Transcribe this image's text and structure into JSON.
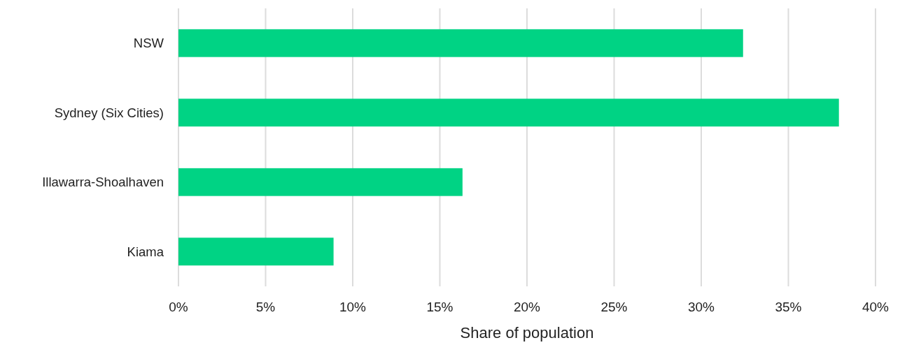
{
  "chart_data": {
    "type": "bar",
    "orientation": "horizontal",
    "xlabel": "Share of population",
    "categories": [
      "NSW",
      "Sydney (Six Cities)",
      "Illawarra-Shoalhaven",
      "Kiama"
    ],
    "values": [
      32.4,
      37.9,
      16.3,
      8.9
    ],
    "color": "#00d384",
    "xlim": [
      0,
      40
    ],
    "xticks": [
      {
        "value": 0,
        "label": "0%"
      },
      {
        "value": 5,
        "label": "5%"
      },
      {
        "value": 10,
        "label": "10%"
      },
      {
        "value": 15,
        "label": "15%"
      },
      {
        "value": 20,
        "label": "20%"
      },
      {
        "value": 25,
        "label": "25%"
      },
      {
        "value": 30,
        "label": "30%"
      },
      {
        "value": 35,
        "label": "35%"
      },
      {
        "value": 40,
        "label": "40%"
      }
    ],
    "grid": "x"
  }
}
